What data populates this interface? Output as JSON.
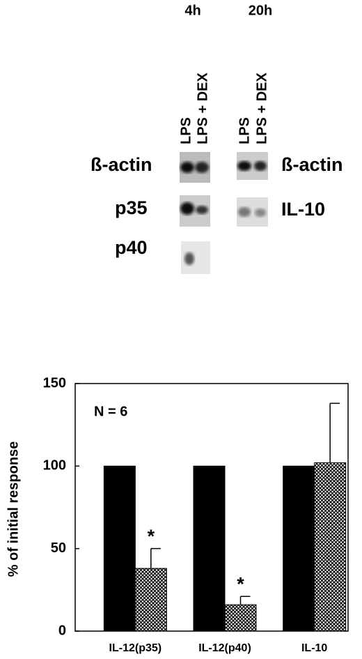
{
  "blot": {
    "time_labels": [
      "4h",
      "20h"
    ],
    "lane_labels": [
      "LPS",
      "LPS + DEX",
      "LPS",
      "LPS + DEX"
    ],
    "row_labels_left": [
      "ß-actin",
      "p35",
      "p40"
    ],
    "row_labels_right": [
      "ß-actin",
      "IL-10"
    ]
  },
  "chart_data": {
    "type": "bar",
    "y_label": "% of initial response",
    "annotation": "N = 6",
    "categories": [
      "IL-12(p35)",
      "IL-12(p40)",
      "IL-10"
    ],
    "series": [
      {
        "color": "#000000",
        "values": [
          100,
          100,
          100
        ]
      },
      {
        "color": "#000000",
        "pattern": "crosshatch",
        "values": [
          38,
          16,
          102
        ],
        "errors": [
          12,
          5,
          36
        ],
        "annotations": [
          "*",
          "*",
          null
        ]
      }
    ],
    "ylim": [
      0,
      150
    ],
    "yticks": [
      0,
      50,
      100,
      150
    ],
    "grid": false
  }
}
